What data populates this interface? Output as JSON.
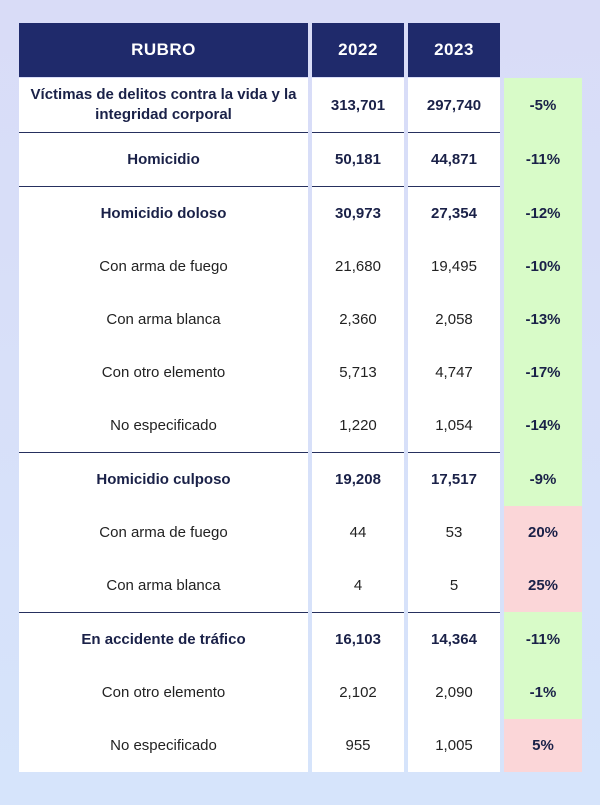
{
  "header": {
    "rubro": "RUBRO",
    "year_a": "2022",
    "year_b": "2023"
  },
  "rows": [
    {
      "label": "Víctimas de delitos contra la vida y la integridad corporal",
      "y2022": "313,701",
      "y2023": "297,740",
      "change": "-5%"
    },
    {
      "label": "Homicidio",
      "y2022": "50,181",
      "y2023": "44,871",
      "change": "-11%"
    },
    {
      "label": "Homicidio doloso",
      "y2022": "30,973",
      "y2023": "27,354",
      "change": "-12%"
    },
    {
      "label": "Con arma de fuego",
      "y2022": "21,680",
      "y2023": "19,495",
      "change": "-10%"
    },
    {
      "label": "Con arma blanca",
      "y2022": "2,360",
      "y2023": "2,058",
      "change": "-13%"
    },
    {
      "label": "Con otro elemento",
      "y2022": "5,713",
      "y2023": "4,747",
      "change": "-17%"
    },
    {
      "label": "No especificado",
      "y2022": "1,220",
      "y2023": "1,054",
      "change": "-14%"
    },
    {
      "label": "Homicidio culposo",
      "y2022": "19,208",
      "y2023": "17,517",
      "change": "-9%"
    },
    {
      "label": "Con arma de fuego",
      "y2022": "44",
      "y2023": "53",
      "change": "20%"
    },
    {
      "label": "Con arma blanca",
      "y2022": "4",
      "y2023": "5",
      "change": "25%"
    },
    {
      "label": "En accidente de tráfico",
      "y2022": "16,103",
      "y2023": "14,364",
      "change": "-11%"
    },
    {
      "label": "Con otro elemento",
      "y2022": "2,102",
      "y2023": "2,090",
      "change": "-1%"
    },
    {
      "label": "No especificado",
      "y2022": "955",
      "y2023": "1,005",
      "change": "5%"
    }
  ],
  "colors": {
    "header_bg": "#1f2a6b",
    "decrease_bg": "#d8fbc8",
    "increase_bg": "#fbd6d8"
  }
}
